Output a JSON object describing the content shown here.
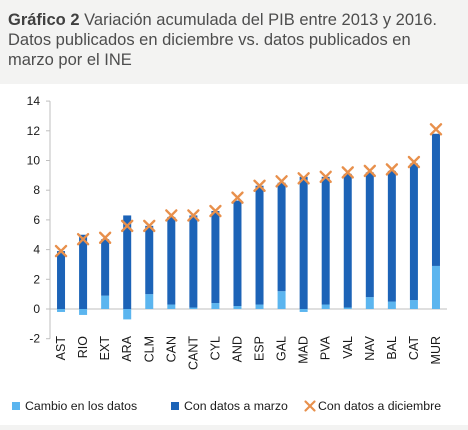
{
  "title_bold": "Gráfico 2",
  "title_rest": " Variación acumulada del PIB entre 2013 y 2016. Datos publicados en diciembre vs. datos publicados en marzo por el INE",
  "colors": {
    "cambio": "#5bb5ef",
    "marzo": "#1c63b7",
    "diciembre": "#e8904c",
    "axis": "#bfbfbf",
    "text": "#1a1a1a"
  },
  "chart_data": {
    "type": "bar",
    "categories": [
      "AST",
      "RIO",
      "EXT",
      "ARA",
      "CLM",
      "CAN",
      "CANT",
      "CYL",
      "AND",
      "ESP",
      "GAL",
      "MAD",
      "PVA",
      "VAL",
      "NAV",
      "BAL",
      "CAT",
      "MUR"
    ],
    "y_ticks": [
      -2,
      0,
      2,
      4,
      6,
      8,
      10,
      12,
      14
    ],
    "ylim": [
      -2,
      14
    ],
    "grid": false,
    "legend_position": "bottom",
    "series": [
      {
        "name": "Cambio en los datos",
        "kind": "bar",
        "values": [
          -0.2,
          -0.4,
          0.9,
          -0.7,
          1.0,
          0.3,
          0.1,
          0.4,
          0.2,
          0.3,
          1.2,
          -0.2,
          0.3,
          0.1,
          0.8,
          0.5,
          0.6,
          2.9
        ]
      },
      {
        "name": "Con datos a marzo",
        "kind": "bar",
        "values": [
          3.9,
          5.0,
          4.7,
          6.3,
          5.6,
          6.2,
          6.3,
          6.6,
          7.3,
          8.3,
          8.5,
          8.9,
          8.9,
          9.1,
          9.2,
          9.3,
          9.8,
          11.8
        ]
      },
      {
        "name": "Con datos a diciembre",
        "kind": "marker",
        "values": [
          3.9,
          4.7,
          4.8,
          5.6,
          5.6,
          6.3,
          6.3,
          6.6,
          7.5,
          8.3,
          8.6,
          8.8,
          8.9,
          9.2,
          9.3,
          9.4,
          9.9,
          12.1
        ]
      }
    ]
  }
}
